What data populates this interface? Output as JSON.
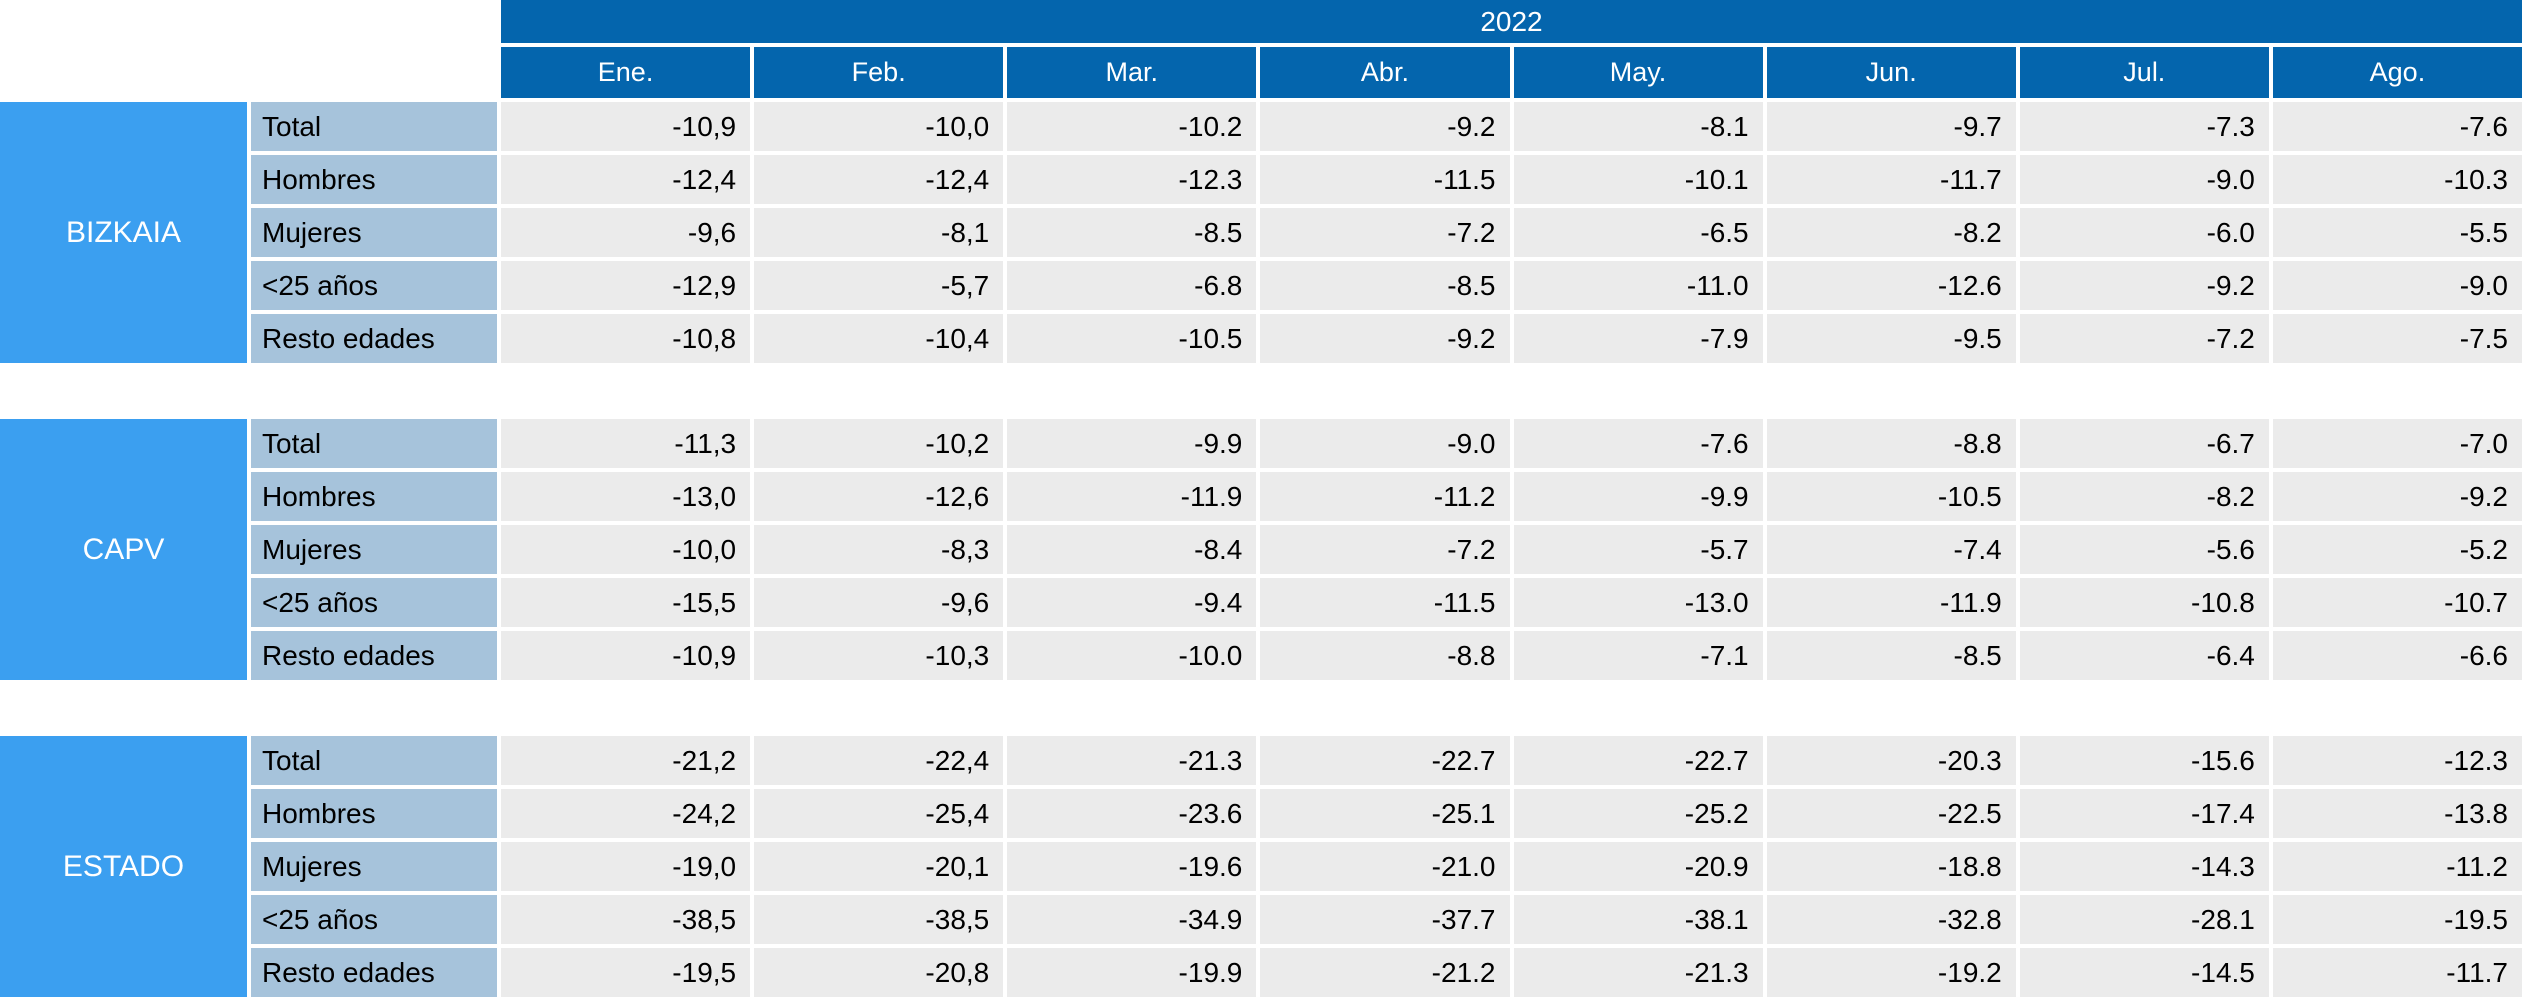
{
  "colors": {
    "header_blue": "#0465ad",
    "region_blue": "#3b9ff0",
    "label_blue": "#a6c3db",
    "cell_gray": "#ebebeb",
    "header_text": "#ffffff",
    "cell_text": "#000000"
  },
  "table": {
    "year": "2022",
    "columns": [
      "Ene.",
      "Feb.",
      "Mar.",
      "Abr.",
      "May.",
      "Jun.",
      "Jul.",
      "Ago."
    ],
    "row_labels": [
      "Total",
      "Hombres",
      "Mujeres",
      "<25 años",
      "Resto edades"
    ],
    "blocks": [
      {
        "region": "BIZKAIA",
        "rows": [
          {
            "label": "Total",
            "values": [
              "-10,9",
              "-10,0",
              "-10.2",
              "-9.2",
              "-8.1",
              "-9.7",
              "-7.3",
              "-7.6"
            ]
          },
          {
            "label": "Hombres",
            "values": [
              "-12,4",
              "-12,4",
              "-12.3",
              "-11.5",
              "-10.1",
              "-11.7",
              "-9.0",
              "-10.3"
            ]
          },
          {
            "label": "Mujeres",
            "values": [
              "-9,6",
              "-8,1",
              "-8.5",
              "-7.2",
              "-6.5",
              "-8.2",
              "-6.0",
              "-5.5"
            ]
          },
          {
            "label": "<25 años",
            "values": [
              "-12,9",
              "-5,7",
              "-6.8",
              "-8.5",
              "-11.0",
              "-12.6",
              "-9.2",
              "-9.0"
            ]
          },
          {
            "label": "Resto edades",
            "values": [
              "-10,8",
              "-10,4",
              "-10.5",
              "-9.2",
              "-7.9",
              "-9.5",
              "-7.2",
              "-7.5"
            ]
          }
        ]
      },
      {
        "region": "CAPV",
        "rows": [
          {
            "label": "Total",
            "values": [
              "-11,3",
              "-10,2",
              "-9.9",
              "-9.0",
              "-7.6",
              "-8.8",
              "-6.7",
              "-7.0"
            ]
          },
          {
            "label": "Hombres",
            "values": [
              "-13,0",
              "-12,6",
              "-11.9",
              "-11.2",
              "-9.9",
              "-10.5",
              "-8.2",
              "-9.2"
            ]
          },
          {
            "label": "Mujeres",
            "values": [
              "-10,0",
              "-8,3",
              "-8.4",
              "-7.2",
              "-5.7",
              "-7.4",
              "-5.6",
              "-5.2"
            ]
          },
          {
            "label": "<25 años",
            "values": [
              "-15,5",
              "-9,6",
              "-9.4",
              "-11.5",
              "-13.0",
              "-11.9",
              "-10.8",
              "-10.7"
            ]
          },
          {
            "label": "Resto edades",
            "values": [
              "-10,9",
              "-10,3",
              "-10.0",
              "-8.8",
              "-7.1",
              "-8.5",
              "-6.4",
              "-6.6"
            ]
          }
        ]
      },
      {
        "region": "ESTADO",
        "rows": [
          {
            "label": "Total",
            "values": [
              "-21,2",
              "-22,4",
              "-21.3",
              "-22.7",
              "-22.7",
              "-20.3",
              "-15.6",
              "-12.3"
            ]
          },
          {
            "label": "Hombres",
            "values": [
              "-24,2",
              "-25,4",
              "-23.6",
              "-25.1",
              "-25.2",
              "-22.5",
              "-17.4",
              "-13.8"
            ]
          },
          {
            "label": "Mujeres",
            "values": [
              "-19,0",
              "-20,1",
              "-19.6",
              "-21.0",
              "-20.9",
              "-18.8",
              "-14.3",
              "-11.2"
            ]
          },
          {
            "label": "<25 años",
            "values": [
              "-38,5",
              "-38,5",
              "-34.9",
              "-37.7",
              "-38.1",
              "-32.8",
              "-28.1",
              "-19.5"
            ]
          },
          {
            "label": "Resto edades",
            "values": [
              "-19,5",
              "-20,8",
              "-19.9",
              "-21.2",
              "-21.3",
              "-19.2",
              "-14.5",
              "-11.7"
            ]
          }
        ]
      }
    ]
  },
  "chart_data": {
    "type": "table",
    "title": "2022",
    "columns": [
      "Ene.",
      "Feb.",
      "Mar.",
      "Abr.",
      "May.",
      "Jun.",
      "Jul.",
      "Ago."
    ],
    "row_groups": [
      {
        "group": "BIZKAIA",
        "rows": [
          {
            "label": "Total",
            "values": [
              -10.9,
              -10.0,
              -10.2,
              -9.2,
              -8.1,
              -9.7,
              -7.3,
              -7.6
            ]
          },
          {
            "label": "Hombres",
            "values": [
              -12.4,
              -12.4,
              -12.3,
              -11.5,
              -10.1,
              -11.7,
              -9.0,
              -10.3
            ]
          },
          {
            "label": "Mujeres",
            "values": [
              -9.6,
              -8.1,
              -8.5,
              -7.2,
              -6.5,
              -8.2,
              -6.0,
              -5.5
            ]
          },
          {
            "label": "<25 años",
            "values": [
              -12.9,
              -5.7,
              -6.8,
              -8.5,
              -11.0,
              -12.6,
              -9.2,
              -9.0
            ]
          },
          {
            "label": "Resto edades",
            "values": [
              -10.8,
              -10.4,
              -10.5,
              -9.2,
              -7.9,
              -9.5,
              -7.2,
              -7.5
            ]
          }
        ]
      },
      {
        "group": "CAPV",
        "rows": [
          {
            "label": "Total",
            "values": [
              -11.3,
              -10.2,
              -9.9,
              -9.0,
              -7.6,
              -8.8,
              -6.7,
              -7.0
            ]
          },
          {
            "label": "Hombres",
            "values": [
              -13.0,
              -12.6,
              -11.9,
              -11.2,
              -9.9,
              -10.5,
              -8.2,
              -9.2
            ]
          },
          {
            "label": "Mujeres",
            "values": [
              -10.0,
              -8.3,
              -8.4,
              -7.2,
              -5.7,
              -7.4,
              -5.6,
              -5.2
            ]
          },
          {
            "label": "<25 años",
            "values": [
              -15.5,
              -9.6,
              -9.4,
              -11.5,
              -13.0,
              -11.9,
              -10.8,
              -10.7
            ]
          },
          {
            "label": "Resto edades",
            "values": [
              -10.9,
              -10.3,
              -10.0,
              -8.8,
              -7.1,
              -8.5,
              -6.4,
              -6.6
            ]
          }
        ]
      },
      {
        "group": "ESTADO",
        "rows": [
          {
            "label": "Total",
            "values": [
              -21.2,
              -22.4,
              -21.3,
              -22.7,
              -22.7,
              -20.3,
              -15.6,
              -12.3
            ]
          },
          {
            "label": "Hombres",
            "values": [
              -24.2,
              -25.4,
              -23.6,
              -25.1,
              -25.2,
              -22.5,
              -17.4,
              -13.8
            ]
          },
          {
            "label": "Mujeres",
            "values": [
              -19.0,
              -20.1,
              -19.6,
              -21.0,
              -20.9,
              -18.8,
              -14.3,
              -11.2
            ]
          },
          {
            "label": "<25 años",
            "values": [
              -38.5,
              -38.5,
              -34.9,
              -37.7,
              -38.1,
              -32.8,
              -28.1,
              -19.5
            ]
          },
          {
            "label": "Resto edades",
            "values": [
              -19.5,
              -20.8,
              -19.9,
              -21.2,
              -21.3,
              -19.2,
              -14.5,
              -11.7
            ]
          }
        ]
      }
    ]
  }
}
